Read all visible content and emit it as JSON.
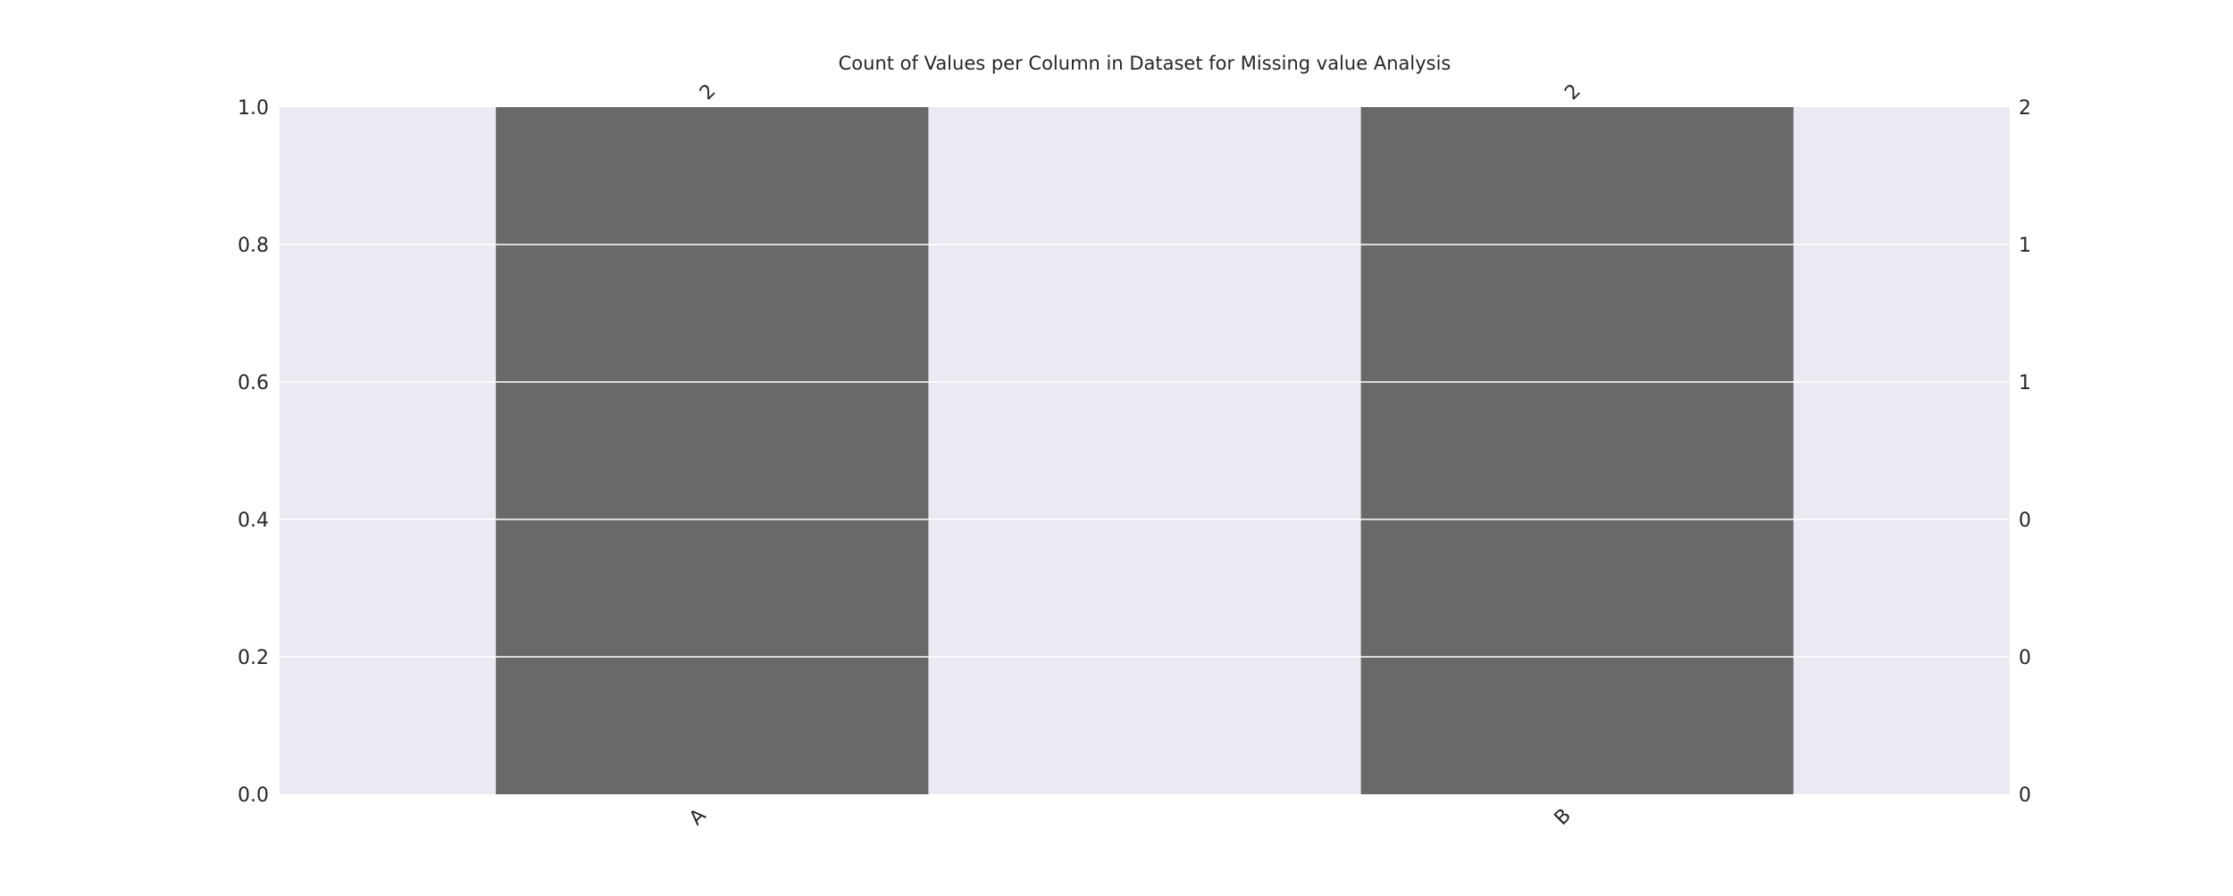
{
  "chart_data": {
    "type": "bar",
    "title": "Count of Values per Column in Dataset for Missing value Analysis",
    "categories": [
      "A",
      "B"
    ],
    "values": [
      1.0,
      1.0
    ],
    "bar_labels": [
      "2",
      "2"
    ],
    "ylim": [
      0,
      1.0
    ],
    "left_ticks": [
      "0.0",
      "0.2",
      "0.4",
      "0.6",
      "0.8",
      "1.0"
    ],
    "right_ticks": [
      "0",
      "0",
      "0",
      "1",
      "1",
      "2"
    ],
    "grid": true,
    "legend": "none",
    "colors": {
      "bar": "#696969",
      "plot_background": "#eaeaf2",
      "grid": "#ffffff",
      "text": "#262626"
    }
  }
}
